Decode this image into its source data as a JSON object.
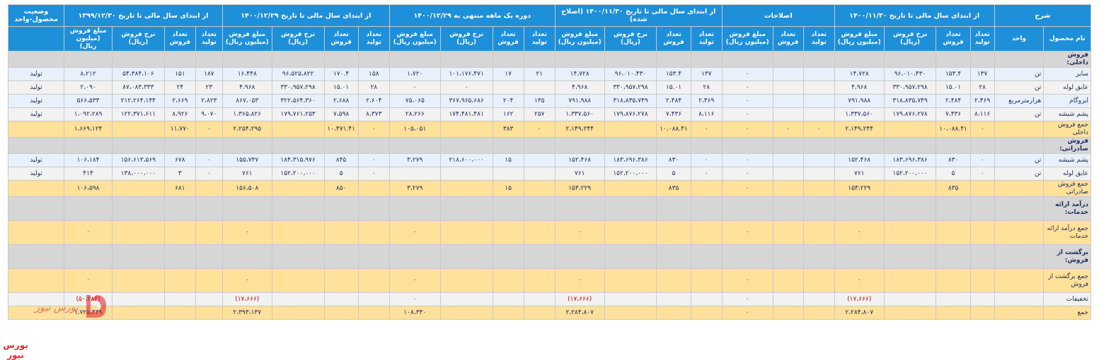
{
  "header": {
    "top": [
      {
        "label": "شرح",
        "span": 2
      },
      {
        "label": "از ابتدای سال مالی تا تاریخ ۱۴۰۰/۱۱/۳۰",
        "span": 4
      },
      {
        "label": "اصلاحات",
        "span": 3
      },
      {
        "label": "از ابتدای سال مالی تا تاریخ ۱۴۰۰/۱۱/۳۰ (اصلاح شده)",
        "span": 4
      },
      {
        "label": "دوره یک ماهه منتهی به ۱۴۰۰/۱۲/۲۹",
        "span": 4
      },
      {
        "label": "از ابتدای سال مالی تا تاریخ ۱۴۰۰/۱۲/۲۹",
        "span": 4
      },
      {
        "label": "از ابتدای سال مالی تا تاریخ ۱۳۹۹/۱۲/۳۰",
        "span": 4
      },
      {
        "label": "وضعیت محصول-واحد",
        "span": 1
      }
    ],
    "sub": [
      "نام محصول",
      "واحد",
      "تعداد تولید",
      "تعداد فروش",
      "نرخ فروش (ریال)",
      "مبلغ فروش (میلیون ریال)",
      "تعداد تولید",
      "تعداد فروش",
      "مبلغ فروش (میلیون ریال)",
      "تعداد تولید",
      "تعداد فروش",
      "نرخ فروش (ریال)",
      "مبلغ فروش (میلیون ریال)",
      "تعداد تولید",
      "تعداد فروش",
      "نرخ فروش (ریال)",
      "مبلغ فروش (میلیون ریال)",
      "تعداد تولید",
      "تعداد فروش",
      "نرخ فروش (ریال)",
      "مبلغ فروش (میلیون ریال)",
      "تعداد تولید",
      "تعداد فروش",
      "نرخ فروش (ریال)",
      "مبلغ فروش (میلیون ریال)"
    ]
  },
  "rows": [
    {
      "kind": "sec",
      "cells": [
        "فروش داخلی:",
        "",
        "",
        "",
        "",
        "",
        "",
        "",
        "",
        "",
        "",
        "",
        "",
        "",
        "",
        "",
        "",
        "",
        "",
        "",
        "",
        "",
        "",
        "",
        "",
        ""
      ]
    },
    {
      "kind": "item",
      "cells": [
        "سایر",
        "تن",
        "۱۳۷",
        "۱۵۳.۴",
        "۹۶،۰۱۰،۴۳۰",
        "۱۴،۷۲۸",
        "",
        "",
        "۰",
        "۱۳۷",
        "۱۵۳.۴",
        "۹۶،۰۱۰،۴۳۰",
        "۱۴،۷۲۸",
        "۲۱",
        "۱۷",
        "۱۰۱،۱۷۶،۴۷۱",
        "۱،۷۲۰",
        "۱۵۸",
        "۱۷۰.۴",
        "۹۶،۵۲۵،۸۲۲",
        "۱۶،۴۴۸",
        "۱۸۷",
        "۱۵۱",
        "۵۴،۳۸۴،۱۰۶",
        "۸،۲۱۲",
        "تولید"
      ]
    },
    {
      "kind": "item alt",
      "cells": [
        "عایق لوله",
        "تن",
        "۲۸",
        "۱۵.۰۱",
        "۳۳۰،۹۵۷،۲۹۸",
        "۴،۹۶۸",
        "",
        "",
        "۰",
        "۲۸",
        "۱۵.۰۱",
        "۳۳۰،۹۵۷،۲۹۸",
        "۴،۹۶۸",
        "",
        "",
        "۰",
        "۰",
        "۲۸",
        "۱۵.۰۱",
        "۳۳۰،۹۵۷،۲۹۸",
        "۴،۹۶۸",
        "۲۳",
        "۲۴",
        "۸۷،۰۸۳،۳۳۳",
        "۲،۰۹۰",
        "تولید"
      ]
    },
    {
      "kind": "item",
      "cells": [
        "ایزوگام",
        "هزارمترمربع",
        "۲،۴۶۹",
        "۲،۴۸۴",
        "۳۱۸،۸۳۵،۷۴۹",
        "۷۹۱،۹۸۸",
        "",
        "",
        "۰",
        "۲،۴۶۹",
        "۲،۴۸۴",
        "۳۱۸،۸۳۵،۷۴۹",
        "۷۹۱،۹۸۸",
        "۱۳۵",
        "۲۰۴",
        "۳۶۷،۹۶۵،۶۸۶",
        "۷۵،۰۶۵",
        "۲،۶۰۴",
        "۲،۶۸۸",
        "۳۲۲،۵۶۴،۳۶۰",
        "۸۶۷،۰۵۳",
        "۲،۸۲۳",
        "۲،۶۶۹",
        "۲۱۲،۲۶۴،۱۴۴",
        "۵۶۶،۵۳۳",
        "تولید"
      ]
    },
    {
      "kind": "item alt",
      "cells": [
        "پشم شیشه",
        "تن",
        "۸،۱۱۶",
        "۷،۴۳۶",
        "۱۷۹،۸۷۶،۲۷۸",
        "۱،۳۳۷،۵۶۰",
        "",
        "",
        "۰",
        "۸،۱۱۶",
        "۷،۴۳۶",
        "۱۷۹،۸۷۶،۲۷۸",
        "۱،۳۳۷،۵۶۰",
        "۲۵۷",
        "۱۶۲",
        "۱۷۴،۴۸۱،۴۸۱",
        "۲۸،۲۶۶",
        "۸،۳۷۳",
        "۷،۵۹۸",
        "۱۷۹،۷۶۱،۲۵۳",
        "۱،۳۶۵،۸۲۶",
        "۹،۰۷۰",
        "۸،۹۲۶",
        "۱۲۲،۳۷۱،۶۱۱",
        "۱،۰۹۲،۲۸۹",
        "تولید"
      ]
    },
    {
      "kind": "total",
      "cells": [
        "جمع فروش داخلی",
        "",
        "۰",
        "۱۰،۰۸۸.۴۱",
        "",
        "۲،۱۴۹،۲۴۴",
        "۰",
        "۰",
        "۰",
        "۰",
        "۱۰،۰۸۸.۴۱",
        "",
        "۲،۱۴۹،۲۴۴",
        "۰",
        "۳۸۳",
        "",
        "۱۰۵،۰۵۱",
        "۰",
        "۱۰،۴۷۱.۴۱",
        "",
        "۲،۲۵۴،۲۹۵",
        "۰",
        "۱۱،۷۷۰",
        "",
        "۱،۶۶۹،۱۲۴",
        ""
      ]
    },
    {
      "kind": "sec",
      "cells": [
        "فروش صادراتی:",
        "",
        "",
        "",
        "",
        "",
        "",
        "",
        "",
        "",
        "",
        "",
        "",
        "",
        "",
        "",
        "",
        "",
        "",
        "",
        "",
        "",
        "",
        "",
        "",
        ""
      ]
    },
    {
      "kind": "item",
      "cells": [
        "پشم شیشه",
        "تن",
        "۰",
        "۸۳۰",
        "۱۸۳،۶۹۶،۳۸۶",
        "۱۵۲،۴۶۸",
        "",
        "",
        "۰",
        "۰",
        "۸۳۰",
        "۱۸۳،۶۹۶،۳۸۶",
        "۱۵۲،۴۶۸",
        "",
        "۱۵",
        "۲۱۸،۶۰۰،۰۰۰",
        "۳،۲۷۹",
        "۰",
        "۸۴۵",
        "۱۸۴،۳۱۵،۹۷۶",
        "۱۵۵،۷۴۷",
        "۰",
        "۶۷۸",
        "۱۵۶،۶۱۳،۵۶۹",
        "۱۰۶،۱۸۴",
        "تولید"
      ]
    },
    {
      "kind": "item alt",
      "cells": [
        "عایق لوله",
        "تن",
        "۰",
        "۵",
        "۱۵۲،۲۰۰،۰۰۰",
        "۷۶۱",
        "",
        "",
        "۰",
        "۰",
        "۵",
        "۱۵۲،۲۰۰،۰۰۰",
        "۷۶۱",
        "",
        "",
        "",
        "",
        "۰",
        "۵",
        "۱۵۲،۲۰۰،۰۰۰",
        "۷۶۱",
        "۰",
        "۳",
        "۱۳۸،۰۰۰،۰۰۰",
        "۴۱۴",
        "تولید"
      ]
    },
    {
      "kind": "total",
      "cells": [
        "جمع فروش صادراتی",
        "",
        "",
        "۸۳۵",
        "",
        "۱۵۳،۲۲۹",
        "",
        "",
        "۰",
        "",
        "۸۳۵",
        "",
        "۱۵۳،۲۲۹",
        "",
        "۱۵",
        "",
        "۳،۲۷۹",
        "",
        "۸۵۰",
        "",
        "۱۵۶،۵۰۸",
        "",
        "۶۸۱",
        "",
        "۱۰۶،۵۹۸",
        ""
      ]
    },
    {
      "kind": "sec tall",
      "cells": [
        "درآمد ارائه خدمات:",
        "",
        "",
        "",
        "",
        "",
        "",
        "",
        "",
        "",
        "",
        "",
        "",
        "",
        "",
        "",
        "",
        "",
        "",
        "",
        "",
        "",
        "",
        "",
        "",
        ""
      ]
    },
    {
      "kind": "total tall",
      "cells": [
        "جمع درآمد ارائه خدمات",
        "",
        "",
        "",
        "",
        "۰",
        "",
        "",
        "۰",
        "",
        "",
        "",
        "۰",
        "",
        "",
        "",
        "۰",
        "",
        "",
        "",
        "۰",
        "",
        "",
        "",
        "۰",
        ""
      ]
    },
    {
      "kind": "sec tall",
      "cells": [
        "برگشت از فروش:",
        "",
        "",
        "",
        "",
        "",
        "",
        "",
        "",
        "",
        "",
        "",
        "",
        "",
        "",
        "",
        "",
        "",
        "",
        "",
        "",
        "",
        "",
        "",
        "",
        ""
      ]
    },
    {
      "kind": "total tall",
      "cells": [
        "جمع برگشت از فروش",
        "",
        "",
        "",
        "",
        "۰",
        "",
        "",
        "۰",
        "",
        "",
        "",
        "۰",
        "",
        "",
        "",
        "۰",
        "",
        "",
        "",
        "۰",
        "",
        "",
        "",
        "۰",
        ""
      ]
    },
    {
      "kind": "item alt",
      "cells": [
        "تخفیفات",
        "",
        "",
        "",
        "",
        "(۱۷،۶۶۶)",
        "",
        "",
        "۰",
        "",
        "",
        "",
        "(۱۷،۶۶۶)",
        "",
        "",
        "",
        "۰",
        "",
        "",
        "",
        "(۱۷،۶۶۶)",
        "",
        "",
        "",
        "(۵۰،۲۸۳)",
        ""
      ]
    },
    {
      "kind": "total",
      "cells": [
        "جمع",
        "",
        "",
        "",
        "",
        "۲،۲۸۴،۸۰۷",
        "",
        "",
        "۰",
        "",
        "",
        "",
        "۲،۲۸۴،۸۰۷",
        "",
        "",
        "",
        "۱۰۸،۳۳۰",
        "",
        "",
        "",
        "۲،۳۹۳،۱۳۷",
        "",
        "",
        "",
        "۱،۷۲۵،۴۳۹",
        ""
      ]
    }
  ],
  "watermark_text": "بورس نیوز",
  "brand_text": "بورس نیوز"
}
